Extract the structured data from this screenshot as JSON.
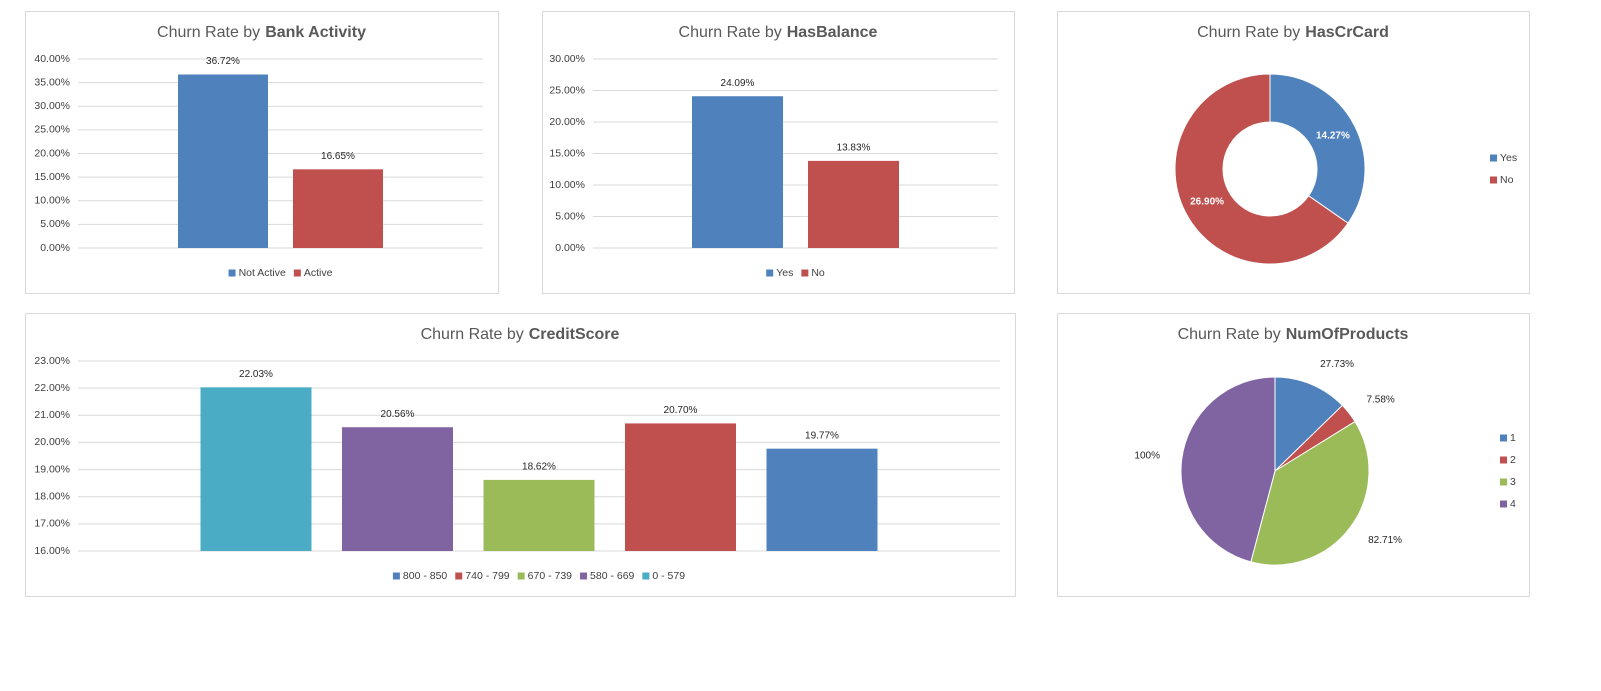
{
  "chart_data": [
    {
      "type": "bar",
      "title": [
        "Churn Rate by",
        "Bank Activity"
      ],
      "categories": [
        "Not Active",
        "Active"
      ],
      "values": [
        36.72,
        16.65
      ],
      "value_labels": [
        "36.72%",
        "16.65%"
      ],
      "colors": [
        "#4f81bd",
        "#c0504d"
      ],
      "ylim": [
        0,
        40
      ],
      "yticks": [
        {
          "value": 0,
          "label": "0.00%"
        },
        {
          "value": 5,
          "label": "5.00%"
        },
        {
          "value": 10,
          "label": "10.00%"
        },
        {
          "value": 15,
          "label": "15.00%"
        },
        {
          "value": 20,
          "label": "20.00%"
        },
        {
          "value": 25,
          "label": "25.00%"
        },
        {
          "value": 30,
          "label": "30.00%"
        },
        {
          "value": 35,
          "label": "35.00%"
        },
        {
          "value": 40,
          "label": "40.00%"
        }
      ],
      "grid": true,
      "legend": "bottom"
    },
    {
      "type": "bar",
      "title": [
        "Churn Rate by",
        "HasBalance"
      ],
      "categories": [
        "Yes",
        "No"
      ],
      "values": [
        24.09,
        13.83
      ],
      "value_labels": [
        "24.09%",
        "13.83%"
      ],
      "colors": [
        "#4f81bd",
        "#c0504d"
      ],
      "ylim": [
        0,
        30
      ],
      "yticks": [
        {
          "value": 0,
          "label": "0.00%"
        },
        {
          "value": 5,
          "label": "5.00%"
        },
        {
          "value": 10,
          "label": "10.00%"
        },
        {
          "value": 15,
          "label": "15.00%"
        },
        {
          "value": 20,
          "label": "20.00%"
        },
        {
          "value": 25,
          "label": "25.00%"
        },
        {
          "value": 30,
          "label": "30.00%"
        }
      ],
      "grid": true,
      "legend": "bottom"
    },
    {
      "type": "donut",
      "title": [
        "Churn Rate by",
        "HasCrCard"
      ],
      "categories": [
        "Yes",
        "No"
      ],
      "values": [
        14.27,
        26.9
      ],
      "value_labels": [
        "14.27%",
        "26.90%"
      ],
      "colors": [
        "#4f81bd",
        "#c0504d"
      ],
      "legend": "right"
    },
    {
      "type": "bar",
      "title": [
        "Churn Rate by",
        "CreditScore"
      ],
      "categories": [
        "0 - 579",
        "580 - 669",
        "670 - 739",
        "740 - 799",
        "800 - 850"
      ],
      "values": [
        22.03,
        20.56,
        18.62,
        20.7,
        19.77
      ],
      "value_labels": [
        "22.03%",
        "20.56%",
        "18.62%",
        "20.70%",
        "19.77%"
      ],
      "colors": [
        "#4bacc6",
        "#8064a2",
        "#9bbb59",
        "#c0504d",
        "#4f81bd"
      ],
      "ylim": [
        16,
        23
      ],
      "yticks": [
        {
          "value": 16,
          "label": "16.00%"
        },
        {
          "value": 17,
          "label": "17.00%"
        },
        {
          "value": 18,
          "label": "18.00%"
        },
        {
          "value": 19,
          "label": "19.00%"
        },
        {
          "value": 20,
          "label": "20.00%"
        },
        {
          "value": 21,
          "label": "21.00%"
        },
        {
          "value": 22,
          "label": "22.00%"
        },
        {
          "value": 23,
          "label": "23.00%"
        }
      ],
      "grid": true,
      "legend": "bottom"
    },
    {
      "type": "pie",
      "title": [
        "Churn Rate by",
        "NumOfProducts"
      ],
      "categories": [
        "1",
        "2",
        "3",
        "4"
      ],
      "values": [
        27.73,
        7.58,
        82.71,
        100
      ],
      "value_labels": [
        "27.73%",
        "7.58%",
        "82.71%",
        "100%"
      ],
      "colors": [
        "#4f81bd",
        "#c0504d",
        "#9bbb59",
        "#8064a2"
      ],
      "legend": "right"
    }
  ]
}
